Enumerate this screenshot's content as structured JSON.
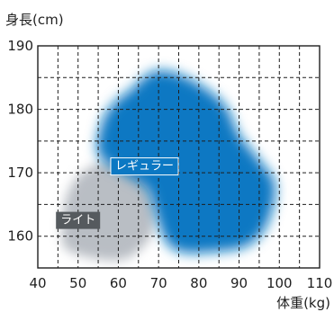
{
  "chart_data": {
    "type": "area",
    "title": "",
    "ylabel": "身長(cm)",
    "xlabel": "体重(kg)",
    "xlim": [
      40,
      110
    ],
    "ylim": [
      155,
      190
    ],
    "x_ticks": [
      40,
      50,
      60,
      70,
      80,
      90,
      100,
      110
    ],
    "y_ticks": [
      160,
      170,
      180,
      190
    ],
    "grid": true,
    "grid_style": "dashed",
    "series": [
      {
        "name": "ライト",
        "color": "#b9bec4",
        "label_color": "#555a5e",
        "label_position": [
          50,
          162.5
        ],
        "boundary": [
          [
            47,
            158
          ],
          [
            54,
            156.5
          ],
          [
            62,
            156.5
          ],
          [
            68,
            160
          ],
          [
            69,
            165
          ],
          [
            66,
            170
          ],
          [
            59,
            172
          ],
          [
            51,
            170
          ],
          [
            47,
            166
          ],
          [
            46,
            161
          ]
        ]
      },
      {
        "name": "レギュラー",
        "color": "#0b78c3",
        "label_color": "#0b78c3",
        "label_position": [
          66.5,
          171
        ],
        "boundary": [
          [
            63,
            183
          ],
          [
            69,
            186
          ],
          [
            77,
            185
          ],
          [
            86,
            181
          ],
          [
            90,
            176
          ],
          [
            95,
            172
          ],
          [
            99,
            168
          ],
          [
            97,
            162
          ],
          [
            92,
            158.5
          ],
          [
            83,
            157.5
          ],
          [
            76,
            157.5
          ],
          [
            72,
            159
          ],
          [
            69.5,
            163
          ],
          [
            67,
            167.5
          ],
          [
            61,
            170
          ],
          [
            55,
            173
          ],
          [
            56,
            178
          ],
          [
            59,
            181
          ]
        ]
      }
    ]
  }
}
